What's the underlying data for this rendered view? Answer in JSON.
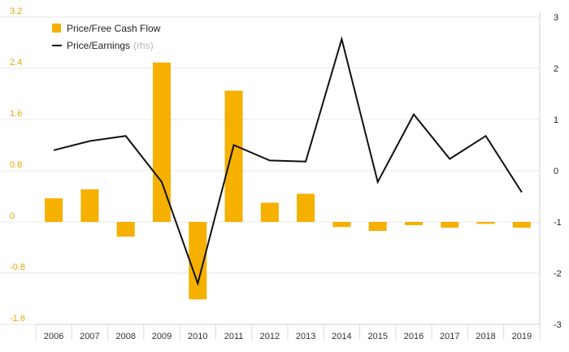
{
  "chart_data": {
    "type": "bar",
    "categories": [
      "2006",
      "2007",
      "2008",
      "2009",
      "2010",
      "2011",
      "2012",
      "2013",
      "2014",
      "2015",
      "2016",
      "2017",
      "2018",
      "2019"
    ],
    "series": [
      {
        "name": "Price/Free Cash Flow",
        "type": "bar",
        "axis": "left",
        "color": "#f5b000",
        "values": [
          0.37,
          0.51,
          -0.23,
          2.49,
          -1.21,
          2.05,
          0.3,
          0.44,
          -0.08,
          -0.14,
          -0.05,
          -0.09,
          -0.03,
          -0.09
        ]
      },
      {
        "name": "Price/Earnings",
        "name_note": "(rhs)",
        "type": "line",
        "axis": "right",
        "color": "#111111",
        "values": [
          0.4,
          0.58,
          0.68,
          -0.22,
          -2.2,
          0.5,
          0.2,
          0.18,
          2.57,
          -0.22,
          1.1,
          0.23,
          0.68,
          -0.42
        ]
      }
    ],
    "y_left": {
      "min": -1.6,
      "max": 3.2,
      "ticks": [
        "3.2",
        "2.4",
        "1.6",
        "0.8",
        "0",
        "-0.8",
        "-1.6"
      ],
      "color": "#e8a800"
    },
    "y_right": {
      "min": -3,
      "max": 3,
      "ticks": [
        "3",
        "2",
        "1",
        "0",
        "-1",
        "-2",
        "-3"
      ],
      "color": "#222222"
    },
    "grid": true,
    "legend_position": "top-left",
    "title": "",
    "xlabel": "",
    "ylabel": ""
  }
}
